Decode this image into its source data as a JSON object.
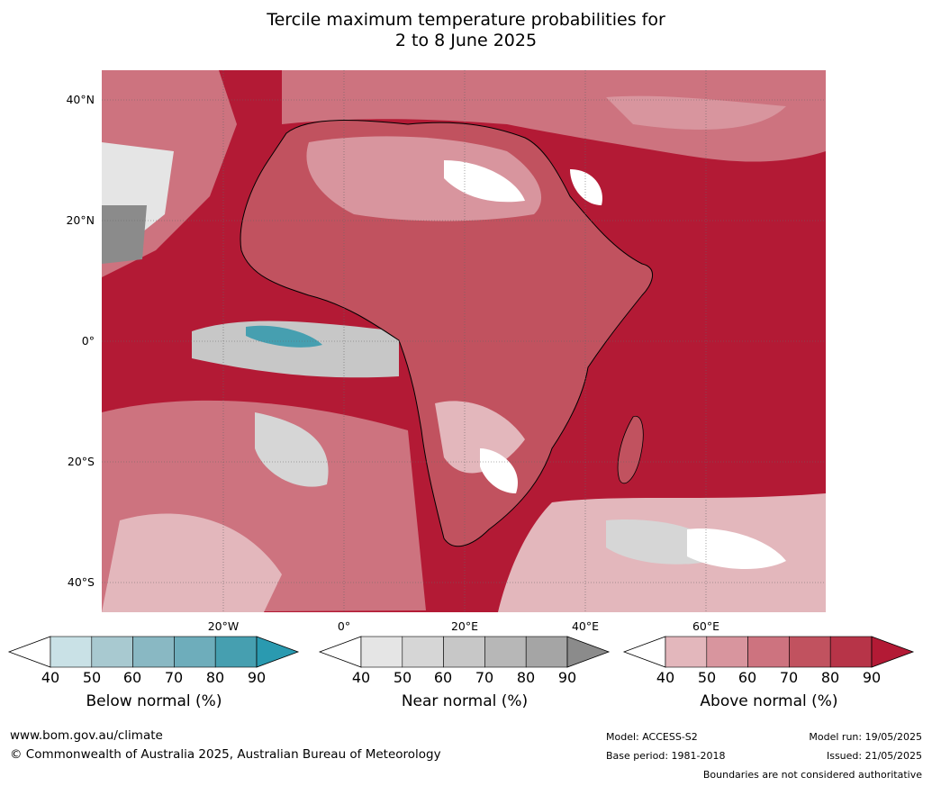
{
  "title_line1": "Tercile maximum temperature probabilities for",
  "title_line2": "2 to 8 June 2025",
  "lat_labels": [
    "40°N",
    "20°N",
    "0°",
    "20°S",
    "40°S"
  ],
  "lon_labels": [
    "20°W",
    "0°",
    "20°E",
    "40°E",
    "60°E"
  ],
  "legends": {
    "below": {
      "title": "Below normal (%)",
      "ticks": [
        "40",
        "50",
        "60",
        "70",
        "80",
        "90"
      ],
      "colors": [
        "#ffffff",
        "#c9e1e6",
        "#a8c9d0",
        "#89b8c3",
        "#6eadbb",
        "#469fb0",
        "#2a9ab0"
      ]
    },
    "near": {
      "title": "Near normal (%)",
      "ticks": [
        "40",
        "50",
        "60",
        "70",
        "80",
        "90"
      ],
      "colors": [
        "#ffffff",
        "#e5e5e5",
        "#d6d6d6",
        "#c7c7c7",
        "#b7b7b7",
        "#a5a5a5",
        "#8b8b8b"
      ]
    },
    "above": {
      "title": "Above normal (%)",
      "ticks": [
        "40",
        "50",
        "60",
        "70",
        "80",
        "90"
      ],
      "colors": [
        "#ffffff",
        "#e3b7bc",
        "#d8959e",
        "#cd737f",
        "#c1525f",
        "#b73448",
        "#b31a35"
      ]
    }
  },
  "footer": {
    "website": "www.bom.gov.au/climate",
    "copyright": "© Commonwealth of Australia 2025, Australian Bureau of Meteorology",
    "model": "Model: ACCESS-S2",
    "base_period": "Base period: 1981-2018",
    "model_run": "Model run: 19/05/2025",
    "issued": "Issued: 21/05/2025",
    "disclaimer": "Boundaries are not considered authoritative"
  }
}
